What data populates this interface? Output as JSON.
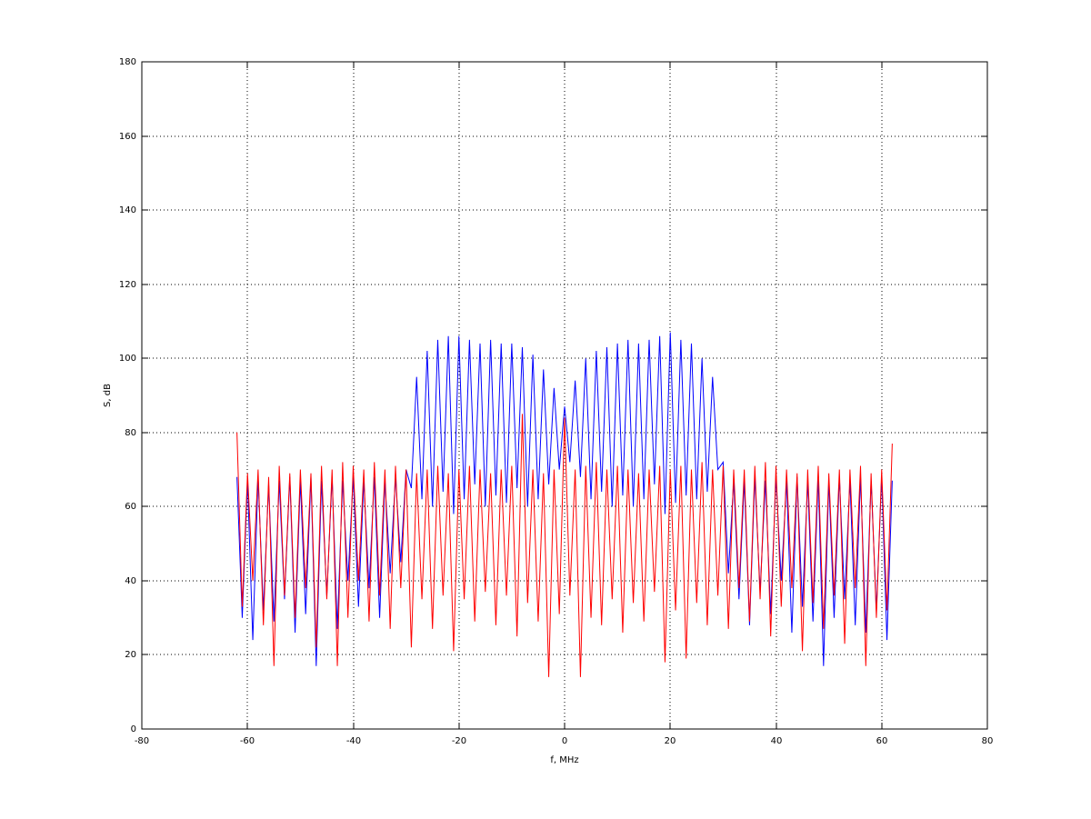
{
  "chart_data": {
    "type": "line",
    "xlabel": "f, MHz",
    "ylabel": "S, dB",
    "xlim": [
      -80,
      80
    ],
    "xticks": [
      -80,
      -60,
      -40,
      -20,
      0,
      20,
      40,
      60,
      80
    ],
    "ylim": [
      0,
      180
    ],
    "yticks": [
      0,
      20,
      40,
      60,
      80,
      100,
      120,
      140,
      160,
      180
    ],
    "grid": true,
    "x": [
      -62,
      -61,
      -60,
      -59,
      -58,
      -57,
      -56,
      -55,
      -54,
      -53,
      -52,
      -51,
      -50,
      -49,
      -48,
      -47,
      -46,
      -45,
      -44,
      -43,
      -42,
      -41,
      -40,
      -39,
      -38,
      -37,
      -36,
      -35,
      -34,
      -33,
      -32,
      -31,
      -30,
      -29,
      -28,
      -27,
      -26,
      -25,
      -24,
      -23,
      -22,
      -21,
      -20,
      -19,
      -18,
      -17,
      -16,
      -15,
      -14,
      -13,
      -12,
      -11,
      -10,
      -9,
      -8,
      -7,
      -6,
      -5,
      -4,
      -3,
      -2,
      -1,
      0,
      1,
      2,
      3,
      4,
      5,
      6,
      7,
      8,
      9,
      10,
      11,
      12,
      13,
      14,
      15,
      16,
      17,
      18,
      19,
      20,
      21,
      22,
      23,
      24,
      25,
      26,
      27,
      28,
      29,
      30,
      31,
      32,
      33,
      34,
      35,
      36,
      37,
      38,
      39,
      40,
      41,
      42,
      43,
      44,
      45,
      46,
      47,
      48,
      49,
      50,
      51,
      52,
      53,
      54,
      55,
      56,
      57,
      58,
      59,
      60,
      61,
      62
    ],
    "series": [
      {
        "color": "#0000ff",
        "values": [
          68,
          30,
          67,
          24,
          68,
          32,
          66,
          29,
          67,
          35,
          68,
          26,
          67,
          31,
          68,
          17,
          67,
          36,
          68,
          27,
          67,
          40,
          68,
          33,
          67,
          38,
          68,
          30,
          67,
          42,
          68,
          45,
          70,
          65,
          95,
          62,
          102,
          60,
          105,
          64,
          106,
          58,
          106,
          62,
          105,
          66,
          104,
          60,
          105,
          63,
          104,
          61,
          104,
          65,
          103,
          60,
          101,
          62,
          97,
          66,
          92,
          70,
          87,
          72,
          94,
          68,
          100,
          62,
          102,
          64,
          103,
          60,
          104,
          63,
          105,
          60,
          104,
          62,
          105,
          66,
          106,
          58,
          107,
          61,
          105,
          63,
          104,
          62,
          100,
          64,
          95,
          70,
          72,
          42,
          67,
          35,
          67,
          28,
          68,
          37,
          67,
          31,
          68,
          40,
          67,
          26,
          68,
          33,
          67,
          29,
          68,
          17,
          67,
          30,
          68,
          35,
          67,
          28,
          68,
          26,
          67,
          32,
          68,
          24,
          67
        ]
      },
      {
        "color": "#ff0000",
        "values": [
          80,
          33,
          69,
          40,
          70,
          28,
          68,
          17,
          71,
          36,
          69,
          30,
          70,
          38,
          69,
          22,
          71,
          35,
          70,
          17,
          72,
          30,
          71,
          40,
          70,
          29,
          72,
          36,
          70,
          27,
          71,
          38,
          70,
          22,
          69,
          35,
          70,
          27,
          71,
          36,
          69,
          21,
          70,
          35,
          71,
          29,
          70,
          37,
          69,
          28,
          70,
          36,
          71,
          25,
          85,
          34,
          70,
          29,
          69,
          14,
          70,
          31,
          84,
          36,
          70,
          14,
          71,
          30,
          72,
          28,
          70,
          35,
          71,
          26,
          70,
          34,
          69,
          29,
          70,
          37,
          71,
          18,
          70,
          32,
          71,
          19,
          70,
          34,
          72,
          28,
          70,
          36,
          71,
          27,
          70,
          38,
          70,
          29,
          71,
          35,
          72,
          25,
          71,
          33,
          70,
          38,
          69,
          21,
          70,
          34,
          71,
          27,
          69,
          36,
          70,
          23,
          70,
          38,
          71,
          17,
          69,
          30,
          70,
          32,
          77
        ]
      }
    ]
  }
}
